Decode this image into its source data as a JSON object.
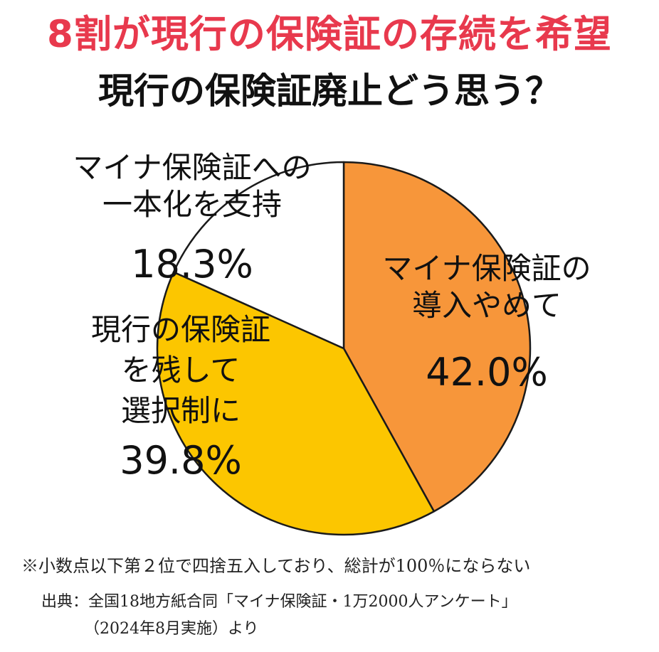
{
  "headline": "8割が現行の保険証の存続を希望",
  "chart_data": {
    "type": "pie",
    "title": "現行の保険証廃止どう思う？",
    "slices": [
      {
        "label_lines": [
          "マイナ保険証の",
          "導入やめて"
        ],
        "value": 42.0,
        "value_label": "42.0%",
        "color": "#f7963a"
      },
      {
        "label_lines": [
          "現行の保険証",
          "を残して",
          "選択制に"
        ],
        "value": 39.8,
        "value_label": "39.8%",
        "color": "#fcc600"
      },
      {
        "label_lines": [
          "マイナ保険証への",
          "一本化を支持"
        ],
        "value": 18.3,
        "value_label": "18.3%",
        "color": "#ffffff"
      }
    ]
  },
  "footnote": "※小数点以下第２位で四捨五入しており、総計が100％にならない",
  "source_line1": "出典：全国18地方紙合同「マイナ保険証・1万2000人アンケート」",
  "source_line2": "（2024年8月実施）より"
}
